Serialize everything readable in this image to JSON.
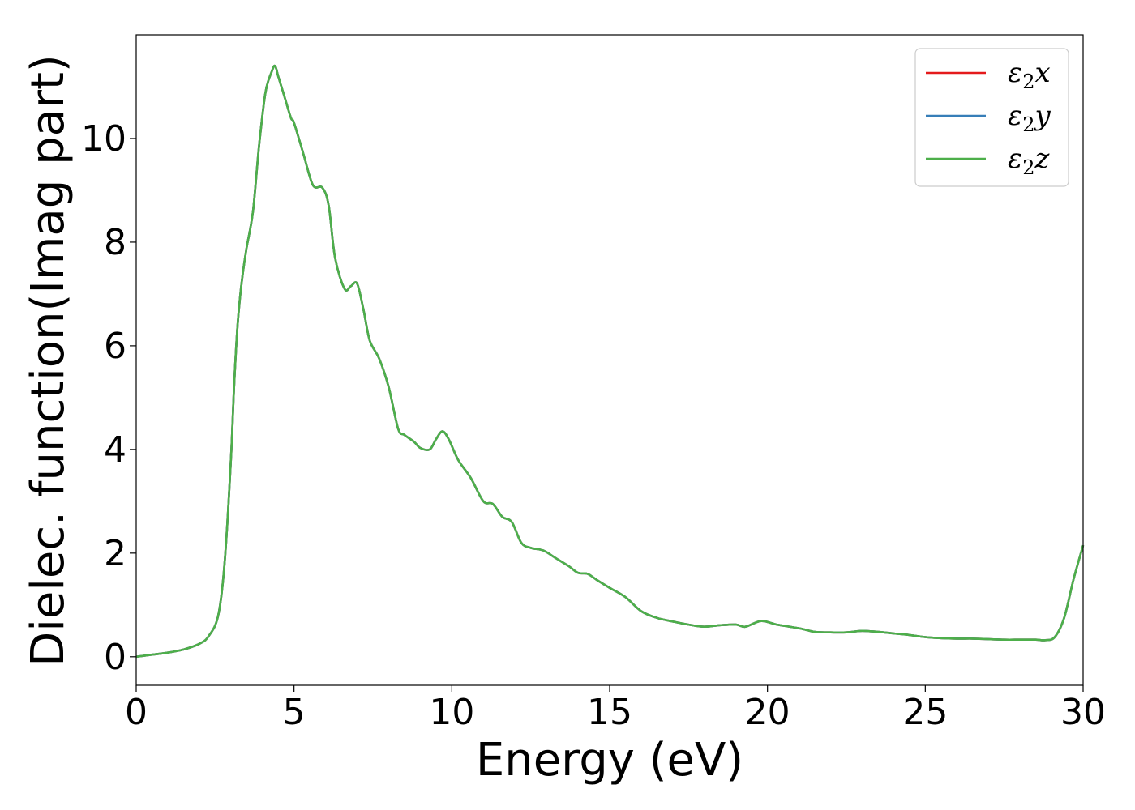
{
  "chart_data": {
    "type": "line",
    "xlabel": "Energy (eV)",
    "ylabel": "Dielec. function(Imag part)",
    "xlim": [
      0,
      30
    ],
    "ylim": [
      -0.55,
      12.0
    ],
    "xticks": [
      0,
      5,
      10,
      15,
      20,
      25,
      30
    ],
    "yticks": [
      0,
      2,
      4,
      6,
      8,
      10
    ],
    "grid": false,
    "legend_position": "top-right",
    "x": [
      0,
      0.5,
      1.0,
      1.5,
      2.0,
      2.3,
      2.6,
      2.8,
      3.0,
      3.1,
      3.2,
      3.3,
      3.4,
      3.5,
      3.7,
      3.9,
      4.1,
      4.3,
      4.4,
      4.5,
      4.7,
      4.9,
      5.0,
      5.3,
      5.6,
      5.9,
      6.1,
      6.3,
      6.6,
      6.8,
      7.0,
      7.2,
      7.4,
      7.7,
      8.0,
      8.3,
      8.5,
      8.8,
      9.0,
      9.3,
      9.5,
      9.7,
      9.9,
      10.2,
      10.6,
      11.0,
      11.3,
      11.6,
      11.9,
      12.2,
      12.5,
      12.9,
      13.3,
      13.7,
      14.0,
      14.3,
      14.6,
      15.0,
      15.5,
      16.0,
      16.5,
      17.0,
      17.5,
      18.0,
      18.5,
      19.0,
      19.3,
      19.8,
      20.3,
      21.0,
      21.5,
      22.0,
      22.5,
      23.0,
      23.5,
      24.0,
      24.5,
      25.0,
      25.5,
      26.0,
      26.5,
      27.0,
      27.5,
      28.0,
      28.5,
      28.8,
      29.1,
      29.4,
      29.7,
      30.0
    ],
    "series": [
      {
        "name": "ε₂x",
        "color": "#e41a1c",
        "values": [
          0.0,
          0.04,
          0.08,
          0.14,
          0.25,
          0.4,
          0.8,
          1.8,
          3.8,
          5.2,
          6.3,
          7.0,
          7.5,
          7.9,
          8.6,
          9.9,
          10.9,
          11.3,
          11.4,
          11.2,
          10.8,
          10.4,
          10.3,
          9.7,
          9.1,
          9.05,
          8.7,
          7.7,
          7.1,
          7.15,
          7.2,
          6.7,
          6.1,
          5.75,
          5.2,
          4.4,
          4.28,
          4.15,
          4.03,
          4.0,
          4.2,
          4.35,
          4.2,
          3.8,
          3.45,
          3.0,
          2.95,
          2.7,
          2.6,
          2.2,
          2.1,
          2.05,
          1.9,
          1.75,
          1.62,
          1.6,
          1.48,
          1.33,
          1.15,
          0.88,
          0.75,
          0.68,
          0.62,
          0.58,
          0.61,
          0.62,
          0.58,
          0.69,
          0.62,
          0.55,
          0.48,
          0.47,
          0.47,
          0.5,
          0.48,
          0.45,
          0.42,
          0.38,
          0.36,
          0.35,
          0.35,
          0.34,
          0.33,
          0.33,
          0.33,
          0.32,
          0.38,
          0.75,
          1.5,
          2.15
        ]
      },
      {
        "name": "ε₂y",
        "color": "#377eb8",
        "values": [
          0.0,
          0.04,
          0.08,
          0.14,
          0.25,
          0.4,
          0.8,
          1.8,
          3.8,
          5.2,
          6.3,
          7.0,
          7.5,
          7.9,
          8.6,
          9.9,
          10.9,
          11.3,
          11.4,
          11.2,
          10.8,
          10.4,
          10.3,
          9.7,
          9.1,
          9.05,
          8.7,
          7.7,
          7.1,
          7.15,
          7.2,
          6.7,
          6.1,
          5.75,
          5.2,
          4.4,
          4.28,
          4.15,
          4.03,
          4.0,
          4.2,
          4.35,
          4.2,
          3.8,
          3.45,
          3.0,
          2.95,
          2.7,
          2.6,
          2.2,
          2.1,
          2.05,
          1.9,
          1.75,
          1.62,
          1.6,
          1.48,
          1.33,
          1.15,
          0.88,
          0.75,
          0.68,
          0.62,
          0.58,
          0.61,
          0.62,
          0.58,
          0.69,
          0.62,
          0.55,
          0.48,
          0.47,
          0.47,
          0.5,
          0.48,
          0.45,
          0.42,
          0.38,
          0.36,
          0.35,
          0.35,
          0.34,
          0.33,
          0.33,
          0.33,
          0.32,
          0.38,
          0.75,
          1.5,
          2.15
        ]
      },
      {
        "name": "ε₂z",
        "color": "#4daf4a",
        "values": [
          0.0,
          0.04,
          0.08,
          0.14,
          0.25,
          0.4,
          0.8,
          1.8,
          3.8,
          5.2,
          6.3,
          7.0,
          7.5,
          7.9,
          8.6,
          9.9,
          10.9,
          11.3,
          11.4,
          11.2,
          10.8,
          10.4,
          10.3,
          9.7,
          9.1,
          9.05,
          8.7,
          7.7,
          7.1,
          7.15,
          7.2,
          6.7,
          6.1,
          5.75,
          5.2,
          4.4,
          4.28,
          4.15,
          4.03,
          4.0,
          4.2,
          4.35,
          4.2,
          3.8,
          3.45,
          3.0,
          2.95,
          2.7,
          2.6,
          2.2,
          2.1,
          2.05,
          1.9,
          1.75,
          1.62,
          1.6,
          1.48,
          1.33,
          1.15,
          0.88,
          0.75,
          0.68,
          0.62,
          0.58,
          0.61,
          0.62,
          0.58,
          0.69,
          0.62,
          0.55,
          0.48,
          0.47,
          0.47,
          0.5,
          0.48,
          0.45,
          0.42,
          0.38,
          0.36,
          0.35,
          0.35,
          0.34,
          0.33,
          0.33,
          0.33,
          0.32,
          0.38,
          0.75,
          1.5,
          2.15
        ]
      }
    ],
    "legend": [
      {
        "symbol": "ε",
        "sub": "2",
        "axis": "x",
        "color": "#e41a1c"
      },
      {
        "symbol": "ε",
        "sub": "2",
        "axis": "y",
        "color": "#377eb8"
      },
      {
        "symbol": "ε",
        "sub": "2",
        "axis": "z",
        "color": "#4daf4a"
      }
    ]
  }
}
